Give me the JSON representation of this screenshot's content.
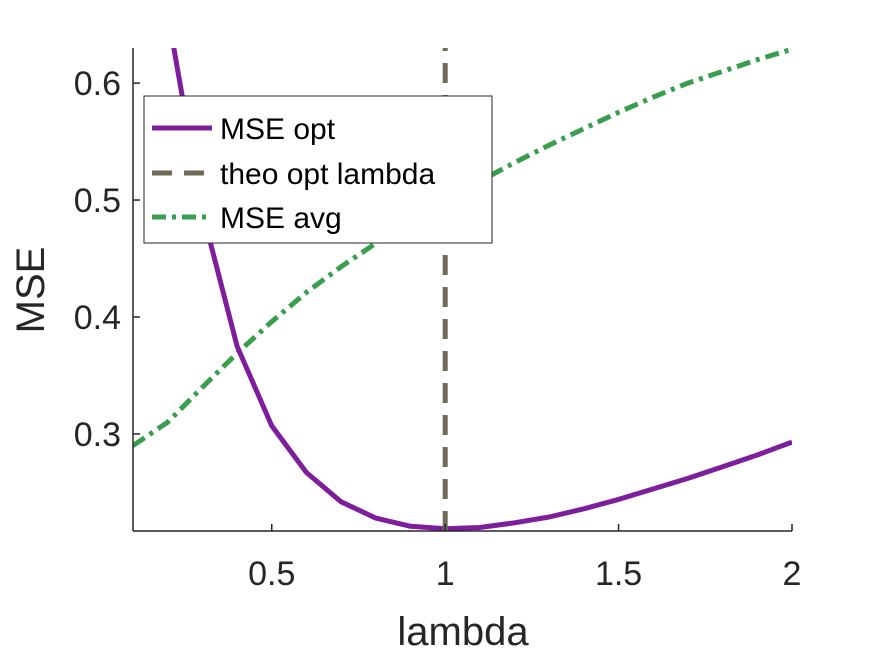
{
  "chart_data": {
    "type": "line",
    "title": "",
    "xlabel": "lambda",
    "ylabel": "MSE",
    "xlim": [
      0.1,
      2
    ],
    "ylim": [
      0.217,
      0.63
    ],
    "xticks": [
      0.5,
      1,
      1.5,
      2
    ],
    "xtick_labels": [
      "0.5",
      "1",
      "1.5",
      "2"
    ],
    "yticks": [
      0.3,
      0.4,
      0.5,
      0.6
    ],
    "ytick_labels": [
      "0.3",
      "0.4",
      "0.5",
      "0.6"
    ],
    "grid": false,
    "legend": {
      "position": "top-left",
      "boxed": true
    },
    "series": [
      {
        "name": "MSE opt",
        "color": "#7E1E9C",
        "style": "solid",
        "x": [
          0.2,
          0.3,
          0.4,
          0.5,
          0.6,
          0.7,
          0.8,
          0.9,
          1.0,
          1.1,
          1.2,
          1.3,
          1.4,
          1.5,
          1.6,
          1.7,
          1.8,
          1.9,
          2.0
        ],
        "y": [
          0.66,
          0.49,
          0.375,
          0.307,
          0.267,
          0.242,
          0.228,
          0.221,
          0.219,
          0.22,
          0.224,
          0.229,
          0.236,
          0.244,
          0.253,
          0.262,
          0.272,
          0.282,
          0.293
        ]
      },
      {
        "name": "theo opt lambda",
        "color": "#6E6A55",
        "style": "dashed",
        "x": [
          1,
          1
        ],
        "y": [
          0.217,
          0.63
        ]
      },
      {
        "name": "MSE avg",
        "color": "#3A9E4F",
        "style": "dashdot",
        "x": [
          0.1,
          0.2,
          0.3,
          0.4,
          0.5,
          0.6,
          0.7,
          0.8,
          0.9,
          1.0,
          1.1,
          1.2,
          1.3,
          1.4,
          1.5,
          1.6,
          1.7,
          1.8,
          1.9,
          2.0
        ],
        "y": [
          0.29,
          0.31,
          0.34,
          0.369,
          0.396,
          0.421,
          0.443,
          0.463,
          0.481,
          0.498,
          0.516,
          0.532,
          0.547,
          0.561,
          0.575,
          0.588,
          0.6,
          0.61,
          0.62,
          0.629
        ]
      }
    ]
  }
}
